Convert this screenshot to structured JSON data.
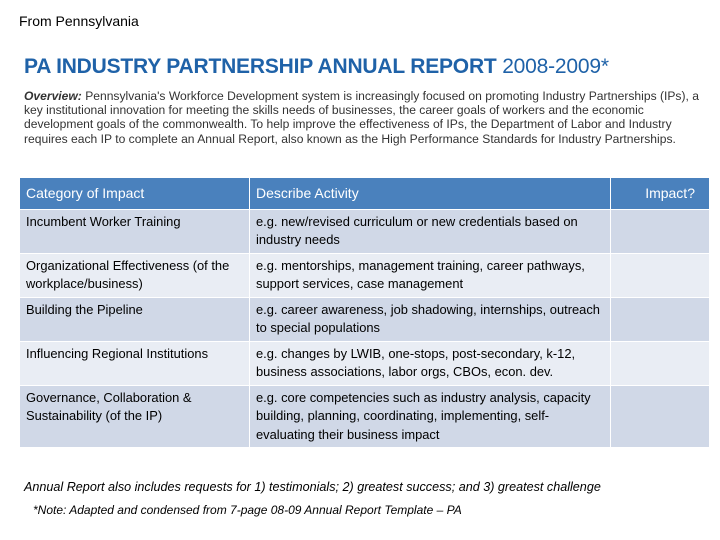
{
  "source": "From Pennsylvania",
  "title": {
    "bold": "PA INDUSTRY PARTNERSHIP ANNUAL REPORT",
    "rest": "2008-2009*"
  },
  "overview": {
    "lead": "Overview:",
    "text": "Pennsylvania's Workforce Development system is increasingly focused on promoting Industry Partnerships (IPs), a key institutional innovation for meeting the skills needs of businesses, the career goals of workers and the economic development goals of the commonwealth. To help improve the effectiveness of IPs, the Department of Labor and Industry requires each IP to complete an Annual Report, also known as the High Performance Standards for Industry Partnerships."
  },
  "table": {
    "headers": [
      "Category of Impact",
      "Describe Activity",
      "Impact?"
    ],
    "rows": [
      {
        "category": "Incumbent Worker Training",
        "activity": "e.g. new/revised curriculum or new credentials based on industry needs",
        "impact": ""
      },
      {
        "category": "Organizational Effectiveness (of the workplace/business)",
        "activity": "e.g. mentorships, management training, career pathways, support services, case management",
        "impact": ""
      },
      {
        "category": "Building the Pipeline",
        "activity": "e.g. career awareness, job shadowing, internships, outreach to special populations",
        "impact": ""
      },
      {
        "category": "Influencing Regional Institutions",
        "activity": "e.g. changes by LWIB, one-stops, post-secondary, k-12, business associations, labor orgs, CBOs, econ. dev.",
        "impact": ""
      },
      {
        "category": "Governance, Collaboration & Sustainability (of the IP)",
        "activity": "e.g. core competencies such as industry analysis, capacity building, planning, coordinating, implementing, self-evaluating their business impact",
        "impact": ""
      }
    ]
  },
  "footer": {
    "annual": "Annual Report also includes requests for 1) testimonials; 2) greatest success; and 3) greatest challenge",
    "note": "*Note: Adapted and condensed from 7-page 08-09 Annual Report Template – PA"
  }
}
